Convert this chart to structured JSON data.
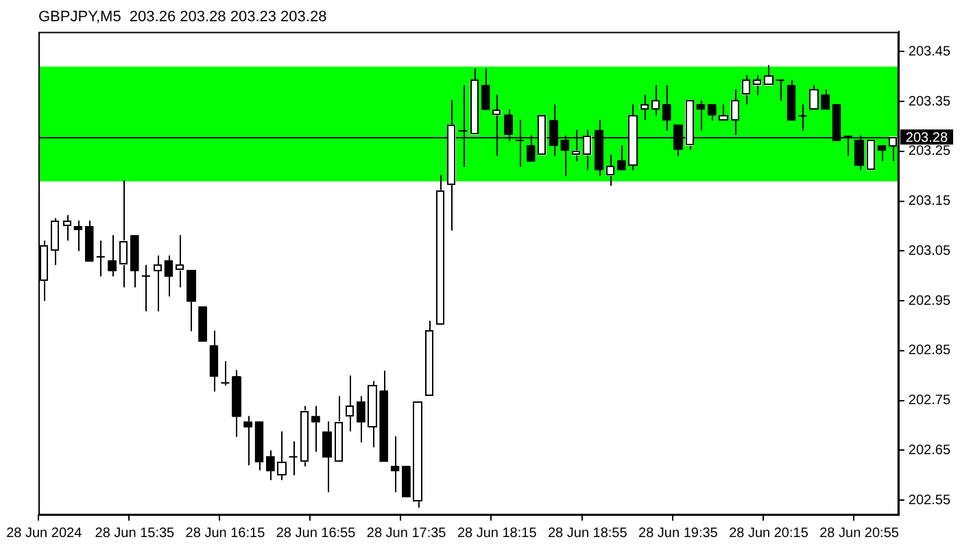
{
  "chart_data": {
    "type": "candlestick",
    "title": "GBPJPY,M5  203.26 203.28 203.23 203.28",
    "color": "#000000",
    "categories": [
      "28 Jun 2024",
      null,
      null,
      null,
      null,
      null,
      null,
      null,
      "28 Jun 15:35",
      null,
      null,
      null,
      null,
      null,
      null,
      null,
      "28 Jun 16:15",
      null,
      null,
      null,
      null,
      null,
      null,
      null,
      "28 Jun 16:55",
      null,
      null,
      null,
      null,
      null,
      null,
      null,
      "28 Jun 17:35",
      null,
      null,
      null,
      null,
      null,
      null,
      null,
      "28 Jun 18:15",
      null,
      null,
      null,
      null,
      null,
      null,
      null,
      "28 Jun 18:55",
      null,
      null,
      null,
      null,
      null,
      null,
      null,
      "28 Jun 19:35",
      null,
      null,
      null,
      null,
      null,
      null,
      null,
      "28 Jun 20:15",
      null,
      null,
      null,
      null,
      null,
      null,
      null,
      "28 Jun 20:55",
      null,
      null,
      null
    ],
    "ohlc": [
      [
        202.99,
        203.071,
        202.95,
        203.062
      ],
      [
        203.051,
        203.116,
        203.022,
        203.11
      ],
      [
        203.1,
        203.122,
        203.071,
        203.11
      ],
      [
        203.1,
        203.111,
        203.05,
        203.092
      ],
      [
        203.1,
        203.111,
        203.029,
        203.029
      ],
      [
        203.041,
        203.071,
        202.999,
        203.041
      ],
      [
        203.031,
        203.082,
        202.999,
        203.01
      ],
      [
        203.022,
        203.192,
        202.977,
        203.071
      ],
      [
        203.082,
        203.082,
        202.977,
        203.01
      ],
      [
        203.001,
        203.022,
        202.929,
        203.001
      ],
      [
        203.01,
        203.041,
        202.929,
        203.022
      ],
      [
        203.031,
        203.041,
        202.959,
        202.999
      ],
      [
        203.011,
        203.082,
        202.977,
        203.022
      ],
      [
        203.011,
        203.011,
        202.889,
        202.948
      ],
      [
        202.939,
        202.939,
        202.868,
        202.868
      ],
      [
        202.86,
        202.89,
        202.768,
        202.798
      ],
      [
        202.787,
        202.829,
        202.78,
        202.787
      ],
      [
        202.799,
        202.811,
        202.677,
        202.717
      ],
      [
        202.708,
        202.719,
        202.62,
        202.696
      ],
      [
        202.708,
        202.708,
        202.61,
        202.626
      ],
      [
        202.638,
        202.65,
        202.59,
        202.608
      ],
      [
        202.601,
        202.688,
        202.59,
        202.627
      ],
      [
        202.638,
        202.668,
        202.6,
        202.638
      ],
      [
        202.627,
        202.739,
        202.618,
        202.73
      ],
      [
        202.719,
        202.739,
        202.647,
        202.706
      ],
      [
        202.688,
        202.708,
        202.566,
        202.636
      ],
      [
        202.627,
        202.759,
        202.627,
        202.708
      ],
      [
        202.719,
        202.8,
        202.688,
        202.739
      ],
      [
        202.748,
        202.759,
        202.666,
        202.706
      ],
      [
        202.696,
        202.789,
        202.656,
        202.78
      ],
      [
        202.769,
        202.81,
        202.627,
        202.627
      ],
      [
        202.618,
        202.678,
        202.566,
        202.608
      ],
      [
        202.618,
        202.618,
        202.556,
        202.556
      ],
      [
        202.547,
        202.748,
        202.535,
        202.748
      ],
      [
        202.758,
        202.91,
        202.758,
        202.89
      ],
      [
        202.901,
        203.203,
        202.901,
        203.172
      ],
      [
        203.183,
        203.353,
        203.091,
        203.304
      ],
      [
        203.293,
        203.383,
        203.219,
        203.293
      ],
      [
        203.283,
        203.416,
        203.283,
        203.394
      ],
      [
        203.382,
        203.416,
        203.333,
        203.333
      ],
      [
        203.322,
        203.364,
        203.241,
        203.334
      ],
      [
        203.324,
        203.334,
        203.271,
        203.283
      ],
      [
        203.272,
        203.313,
        203.219,
        203.272
      ],
      [
        203.261,
        203.282,
        203.23,
        203.23
      ],
      [
        203.242,
        203.322,
        203.242,
        203.322
      ],
      [
        203.313,
        203.344,
        203.241,
        203.261
      ],
      [
        203.273,
        203.282,
        203.201,
        203.252
      ],
      [
        203.242,
        203.293,
        203.23,
        203.252
      ],
      [
        203.242,
        203.293,
        203.212,
        203.282
      ],
      [
        203.293,
        203.313,
        203.201,
        203.212
      ],
      [
        203.201,
        203.243,
        203.181,
        203.221
      ],
      [
        203.232,
        203.262,
        203.212,
        203.212
      ],
      [
        203.221,
        203.344,
        203.212,
        203.323
      ],
      [
        203.334,
        203.364,
        203.313,
        203.344
      ],
      [
        203.334,
        203.383,
        203.322,
        203.352
      ],
      [
        203.344,
        203.383,
        203.292,
        203.312
      ],
      [
        203.304,
        203.304,
        203.241,
        203.253
      ],
      [
        203.261,
        203.352,
        203.253,
        203.352
      ],
      [
        203.344,
        203.352,
        203.292,
        203.334
      ],
      [
        203.344,
        203.344,
        203.312,
        203.322
      ],
      [
        203.312,
        203.344,
        203.312,
        203.323
      ],
      [
        203.312,
        203.374,
        203.283,
        203.352
      ],
      [
        203.363,
        203.403,
        203.344,
        203.393
      ],
      [
        203.382,
        203.403,
        203.363,
        203.393
      ],
      [
        203.382,
        203.423,
        203.382,
        203.403
      ],
      [
        203.393,
        203.393,
        203.352,
        203.393
      ],
      [
        203.382,
        203.393,
        203.312,
        203.312
      ],
      [
        203.323,
        203.344,
        203.292,
        203.323
      ],
      [
        203.334,
        203.383,
        203.334,
        203.374
      ],
      [
        203.364,
        203.374,
        203.334,
        203.334
      ],
      [
        203.344,
        203.344,
        203.271,
        203.271
      ],
      [
        203.282,
        203.282,
        203.241,
        203.282
      ],
      [
        203.273,
        203.282,
        203.212,
        203.221
      ],
      [
        203.212,
        203.273,
        203.212,
        203.273
      ],
      [
        203.262,
        203.262,
        203.23,
        203.252
      ],
      [
        203.26,
        203.28,
        203.23,
        203.28
      ]
    ],
    "colors": [
      "#ffffff",
      "#ffffff",
      "#ffffff",
      "#000000",
      "#000000",
      "#000000",
      "#000000",
      "#ffffff",
      "#000000",
      "#000000",
      "#ffffff",
      "#000000",
      "#ffffff",
      "#000000",
      "#000000",
      "#000000",
      "#000000",
      "#000000",
      "#000000",
      "#000000",
      "#000000",
      "#ffffff",
      "#000000",
      "#ffffff",
      "#000000",
      "#000000",
      "#ffffff",
      "#ffffff",
      "#000000",
      "#ffffff",
      "#000000",
      "#000000",
      "#000000",
      "#ffffff",
      "#ffffff",
      "#ffffff",
      "#ffffff",
      "#000000",
      "#ffffff",
      "#000000",
      "#ffffff",
      "#000000",
      "#000000",
      "#000000",
      "#ffffff",
      "#000000",
      "#000000",
      "#ffffff",
      "#ffffff",
      "#000000",
      "#ffffff",
      "#000000",
      "#ffffff",
      "#ffffff",
      "#ffffff",
      "#000000",
      "#000000",
      "#ffffff",
      "#000000",
      "#000000",
      "#ffffff",
      "#ffffff",
      "#ffffff",
      "#ffffff",
      "#ffffff",
      "#000000",
      "#000000",
      "#000000",
      "#ffffff",
      "#000000",
      "#000000",
      "#000000",
      "#000000",
      "#ffffff",
      "#000000",
      "#ffffff"
    ],
    "ylim": [
      202.52,
      203.49
    ],
    "yticks": [
      202.55,
      202.65,
      202.75,
      202.85,
      202.95,
      203.05,
      203.15,
      203.25,
      203.35,
      203.45
    ],
    "ref_lines": [
      {
        "axis": "y",
        "value": 203.28,
        "label": "203.28",
        "color": "#000000"
      }
    ],
    "bands": [
      {
        "axis": "y",
        "from": 203.19,
        "to": 203.42,
        "color": "#00ff00"
      }
    ],
    "grid": false,
    "legend": false
  }
}
